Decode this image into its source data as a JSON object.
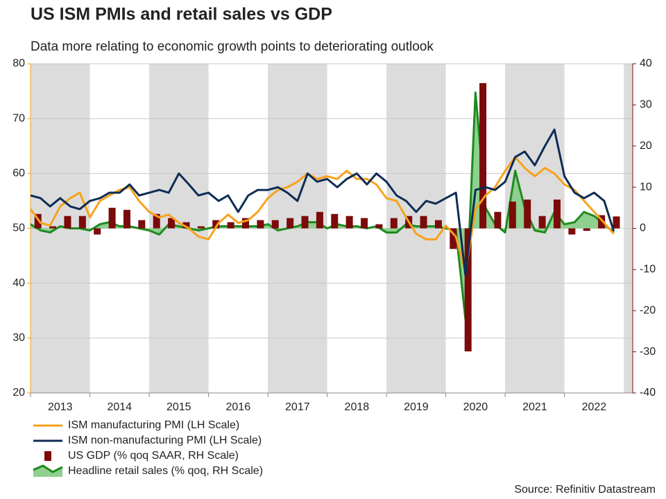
{
  "chart_data": {
    "type": "combo",
    "title": "US ISM PMIs and retail sales vs GDP",
    "subtitle": "Data more relating to economic growth points to deteriorating outlook",
    "source": "Source: Refinitiv Datastream",
    "xlim": [
      2013,
      2023.15
    ],
    "xticks": [
      {
        "value": 2013.5,
        "label": "2013"
      },
      {
        "value": 2014.5,
        "label": "2014"
      },
      {
        "value": 2015.5,
        "label": "2015"
      },
      {
        "value": 2016.5,
        "label": "2016"
      },
      {
        "value": 2017.5,
        "label": "2017"
      },
      {
        "value": 2018.5,
        "label": "2018"
      },
      {
        "value": 2019.5,
        "label": "2019"
      },
      {
        "value": 2020.5,
        "label": "2020"
      },
      {
        "value": 2021.5,
        "label": "2021"
      },
      {
        "value": 2022.5,
        "label": "2022"
      }
    ],
    "ylim": [
      20,
      80
    ],
    "yticks": [
      20,
      30,
      40,
      50,
      60,
      70,
      80
    ],
    "y2lim": [
      -40,
      40
    ],
    "y2ticks": [
      -40,
      -30,
      -20,
      -10,
      0,
      10,
      20,
      30,
      40
    ],
    "grid": true,
    "series": [
      {
        "name": "ISM manufacturing PMI (LH Scale)",
        "type": "line",
        "color": "#f7a21b",
        "axis": "y",
        "x": [
          2013,
          2013.17,
          2013.33,
          2013.5,
          2013.67,
          2013.83,
          2014,
          2014.17,
          2014.33,
          2014.5,
          2014.67,
          2014.83,
          2015,
          2015.17,
          2015.33,
          2015.5,
          2015.67,
          2015.83,
          2016,
          2016.17,
          2016.33,
          2016.5,
          2016.67,
          2016.83,
          2017,
          2017.17,
          2017.33,
          2017.5,
          2017.67,
          2017.83,
          2018,
          2018.17,
          2018.33,
          2018.5,
          2018.67,
          2018.83,
          2019,
          2019.17,
          2019.33,
          2019.5,
          2019.67,
          2019.83,
          2020,
          2020.17,
          2020.33,
          2020.5,
          2020.67,
          2020.83,
          2021,
          2021.17,
          2021.33,
          2021.5,
          2021.67,
          2021.83,
          2022,
          2022.17,
          2022.33,
          2022.5,
          2022.67,
          2022.83
        ],
        "values": [
          53.5,
          51,
          50.5,
          54,
          55.5,
          56.5,
          52,
          55,
          56,
          57,
          57.5,
          55,
          53,
          52,
          52.5,
          51,
          50,
          48.5,
          48,
          51,
          52.5,
          51,
          51.5,
          53,
          55.5,
          57,
          57.5,
          58.5,
          60,
          59,
          59.5,
          59,
          60.5,
          59,
          59,
          58,
          55.5,
          55,
          52,
          49,
          48,
          48,
          50.5,
          48.5,
          42,
          53.5,
          56,
          57.5,
          60.5,
          63,
          61,
          59.5,
          61,
          60,
          58,
          57,
          55,
          53,
          51,
          49
        ]
      },
      {
        "name": "ISM non-manufacturing PMI (LH Scale)",
        "type": "line",
        "color": "#0d2c54",
        "axis": "y",
        "x": [
          2013,
          2013.17,
          2013.33,
          2013.5,
          2013.67,
          2013.83,
          2014,
          2014.17,
          2014.33,
          2014.5,
          2014.67,
          2014.83,
          2015,
          2015.17,
          2015.33,
          2015.5,
          2015.67,
          2015.83,
          2016,
          2016.17,
          2016.33,
          2016.5,
          2016.67,
          2016.83,
          2017,
          2017.17,
          2017.33,
          2017.5,
          2017.67,
          2017.83,
          2018,
          2018.17,
          2018.33,
          2018.5,
          2018.67,
          2018.83,
          2019,
          2019.17,
          2019.33,
          2019.5,
          2019.67,
          2019.83,
          2020,
          2020.17,
          2020.33,
          2020.5,
          2020.67,
          2020.83,
          2021,
          2021.17,
          2021.33,
          2021.5,
          2021.67,
          2021.83,
          2022,
          2022.17,
          2022.33,
          2022.5,
          2022.67,
          2022.83
        ],
        "values": [
          56,
          55.5,
          54,
          55.5,
          54,
          53.5,
          55,
          55.5,
          56.5,
          56.5,
          58,
          56,
          56.5,
          57,
          56.5,
          60,
          58,
          56,
          56.5,
          55,
          56,
          53,
          56,
          57,
          57,
          57.5,
          56.5,
          55,
          60,
          58.5,
          59,
          57.5,
          59,
          60,
          58,
          60,
          58.5,
          56,
          55,
          53,
          55,
          54.5,
          55.5,
          56.5,
          41.5,
          57,
          57.5,
          57,
          58.5,
          63,
          64,
          61.5,
          65,
          68,
          59.5,
          56.5,
          55.5,
          56.5,
          55,
          49.5
        ]
      },
      {
        "name": "US GDP (% qoq SAAR, RH Scale)",
        "type": "bar",
        "color": "#7b0a0a",
        "axis": "y2",
        "x": [
          2013.125,
          2013.375,
          2013.625,
          2013.875,
          2014.125,
          2014.375,
          2014.625,
          2014.875,
          2015.125,
          2015.375,
          2015.625,
          2015.875,
          2016.125,
          2016.375,
          2016.625,
          2016.875,
          2017.125,
          2017.375,
          2017.625,
          2017.875,
          2018.125,
          2018.375,
          2018.625,
          2018.875,
          2019.125,
          2019.375,
          2019.625,
          2019.875,
          2020.125,
          2020.375,
          2020.625,
          2020.875,
          2021.125,
          2021.375,
          2021.625,
          2021.875,
          2022.125,
          2022.375,
          2022.625,
          2022.875
        ],
        "values": [
          3.5,
          0.5,
          3,
          3,
          -1.5,
          5,
          4.5,
          2,
          3.5,
          2.5,
          1.5,
          0.5,
          2,
          1.5,
          2.5,
          2,
          2,
          2.5,
          3,
          4,
          3.5,
          3,
          2.5,
          1,
          2.5,
          3,
          3,
          2,
          -5,
          -29.9,
          35.3,
          4,
          6.5,
          7,
          3,
          7,
          -1.5,
          -0.6,
          3.2,
          2.9
        ]
      },
      {
        "name": "Headline retail sales (% qoq, RH Scale)",
        "type": "area",
        "color": "#1e8a1e",
        "fill": "#8fcf8f",
        "axis": "y2",
        "x": [
          2013,
          2013.17,
          2013.33,
          2013.5,
          2013.67,
          2013.83,
          2014,
          2014.17,
          2014.33,
          2014.5,
          2014.67,
          2014.83,
          2015,
          2015.17,
          2015.33,
          2015.5,
          2015.67,
          2015.83,
          2016,
          2016.17,
          2016.33,
          2016.5,
          2016.67,
          2016.83,
          2017,
          2017.17,
          2017.33,
          2017.5,
          2017.67,
          2017.83,
          2018,
          2018.17,
          2018.33,
          2018.5,
          2018.67,
          2018.83,
          2019,
          2019.17,
          2019.33,
          2019.5,
          2019.67,
          2019.83,
          2020,
          2020.17,
          2020.33,
          2020.5,
          2020.67,
          2020.83,
          2021,
          2021.17,
          2021.33,
          2021.5,
          2021.67,
          2021.83,
          2022,
          2022.17,
          2022.33,
          2022.5,
          2022.67,
          2022.83
        ],
        "values": [
          1,
          -0.5,
          -1,
          0.5,
          0,
          0,
          -0.5,
          1,
          1.5,
          0.5,
          0.5,
          0,
          -0.5,
          -1.5,
          1,
          0.5,
          0,
          -0.5,
          0,
          0.5,
          0.5,
          0.5,
          0.5,
          0.5,
          1,
          -0.5,
          0,
          0.5,
          1.5,
          1.5,
          0,
          1,
          0.5,
          0.5,
          0,
          0.5,
          -1,
          -1,
          1,
          0.5,
          0.5,
          0.5,
          0,
          -0.5,
          -22,
          33,
          5,
          1,
          -1,
          14,
          5,
          -0.5,
          -1,
          4,
          1,
          1.5,
          4,
          3,
          1,
          -1
        ]
      }
    ]
  }
}
